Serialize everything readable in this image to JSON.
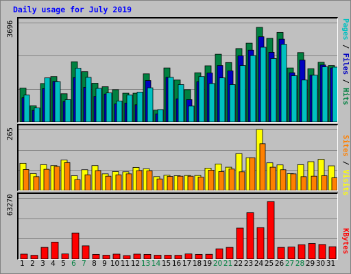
{
  "title": "Daily usage for July 2019",
  "panels": {
    "top": {
      "ymax_label": "3696"
    },
    "middle": {
      "ymax_label": "265"
    },
    "bottom": {
      "ymax_label": "63270"
    }
  },
  "legend": {
    "top": [
      {
        "text": "Pages",
        "color": "#00c0c0"
      },
      {
        "text": " / ",
        "color": "#000000"
      },
      {
        "text": "Files",
        "color": "#0000c0"
      },
      {
        "text": " / ",
        "color": "#000000"
      },
      {
        "text": "Hits",
        "color": "#008040"
      }
    ],
    "middle": [
      {
        "text": "Sites",
        "color": "#ff8000"
      },
      {
        "text": " / ",
        "color": "#000000"
      },
      {
        "text": "Visits",
        "color": "#ffff00"
      }
    ],
    "bottom": [
      {
        "text": "KBytes",
        "color": "#ff0000"
      }
    ]
  },
  "colors": {
    "hits": "#008040",
    "files": "#0000c0",
    "pages": "#00c0c0",
    "visits": "#ffff00",
    "sites": "#ff8000",
    "kbytes": "#ff0000",
    "weekend_label": "#008040",
    "weekday_label": "#000000"
  },
  "chart_data": {
    "type": "bar",
    "title": "Daily usage for July 2019",
    "categories": [
      "1",
      "2",
      "3",
      "4",
      "5",
      "6",
      "7",
      "8",
      "9",
      "10",
      "11",
      "12",
      "13",
      "14",
      "15",
      "16",
      "17",
      "18",
      "19",
      "20",
      "21",
      "22",
      "23",
      "24",
      "25",
      "26",
      "27",
      "28",
      "29",
      "30",
      "31"
    ],
    "weekend_days": [
      "6",
      "7",
      "13",
      "14",
      "20",
      "21",
      "27",
      "28"
    ],
    "panels": [
      {
        "name": "top",
        "ylim": [
          0,
          3696
        ],
        "series": [
          {
            "name": "Hits",
            "values": [
              1260,
              600,
              1430,
              1690,
              1050,
              2240,
              1870,
              1440,
              1310,
              1200,
              1070,
              1070,
              1790,
              440,
              2010,
              1560,
              1200,
              1830,
              2090,
              2520,
              2210,
              2730,
              2930,
              3520,
              3110,
              3330,
              2010,
              2580,
              1980,
              2220,
              2100
            ]
          },
          {
            "name": "Files",
            "values": [
              900,
              430,
              1240,
              1510,
              760,
              1650,
              1290,
              950,
              1040,
              670,
              700,
              640,
              1540,
              300,
              1660,
              860,
              830,
              1500,
              1820,
              2100,
              1900,
              2460,
              2670,
              3170,
              2590,
              3080,
              1830,
              2300,
              1740,
              2120,
              2010
            ]
          },
          {
            "name": "Pages",
            "values": [
              1000,
              520,
              1640,
              1500,
              830,
              2000,
              1660,
              1250,
              1080,
              780,
              1000,
              1110,
              1270,
              460,
              1660,
              1390,
              590,
              1690,
              1430,
              1640,
              1390,
              2100,
              2470,
              2780,
              2360,
              2890,
              1720,
              1560,
              1740,
              2050,
              2040
            ]
          }
        ]
      },
      {
        "name": "middle",
        "ylim": [
          0,
          265
        ],
        "series": [
          {
            "name": "Visits",
            "values": [
              118,
              73,
              112,
              108,
              132,
              64,
              90,
              108,
              72,
              82,
              81,
              100,
              94,
              60,
              66,
              64,
              65,
              65,
              97,
              115,
              101,
              160,
              142,
              265,
              120,
              111,
              73,
              112,
              125,
              135,
              107
            ]
          },
          {
            "name": "Sites",
            "values": [
              91,
              60,
              92,
              104,
              121,
              47,
              68,
              86,
              62,
              68,
              72,
              86,
              85,
              50,
              61,
              62,
              62,
              58,
              88,
              82,
              93,
              81,
              142,
              203,
              101,
              90,
              72,
              60,
              62,
              64,
              55
            ]
          }
        ]
      },
      {
        "name": "bottom",
        "ylim": [
          0,
          63270
        ],
        "series": [
          {
            "name": "KBytes",
            "values": [
              5000,
              3800,
              12000,
              17500,
              5200,
              26900,
              13600,
              4700,
              3900,
              5000,
              3500,
              5000,
              4700,
              3900,
              3900,
              3800,
              5200,
              4700,
              4800,
              10500,
              12000,
              32000,
              48000,
              32500,
              59500,
              12000,
              12400,
              14800,
              16000,
              15000,
              12700
            ]
          }
        ]
      }
    ]
  }
}
